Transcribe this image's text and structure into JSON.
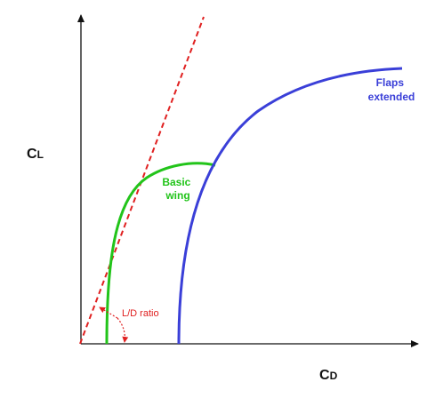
{
  "axes": {
    "y_label_main": "C",
    "y_label_sub": "L",
    "x_label_main": "C",
    "x_label_sub": "D"
  },
  "curves": {
    "basic_wing": {
      "line1": "Basic",
      "line2": "wing",
      "color": "#22c41a"
    },
    "flaps_extended": {
      "line1": "Flaps",
      "line2": "extended",
      "color": "#3a3fd8"
    }
  },
  "tangent_line": {
    "color": "#e02020"
  },
  "ld_annotation": {
    "label": "L/D ratio",
    "color": "#e02020"
  }
}
